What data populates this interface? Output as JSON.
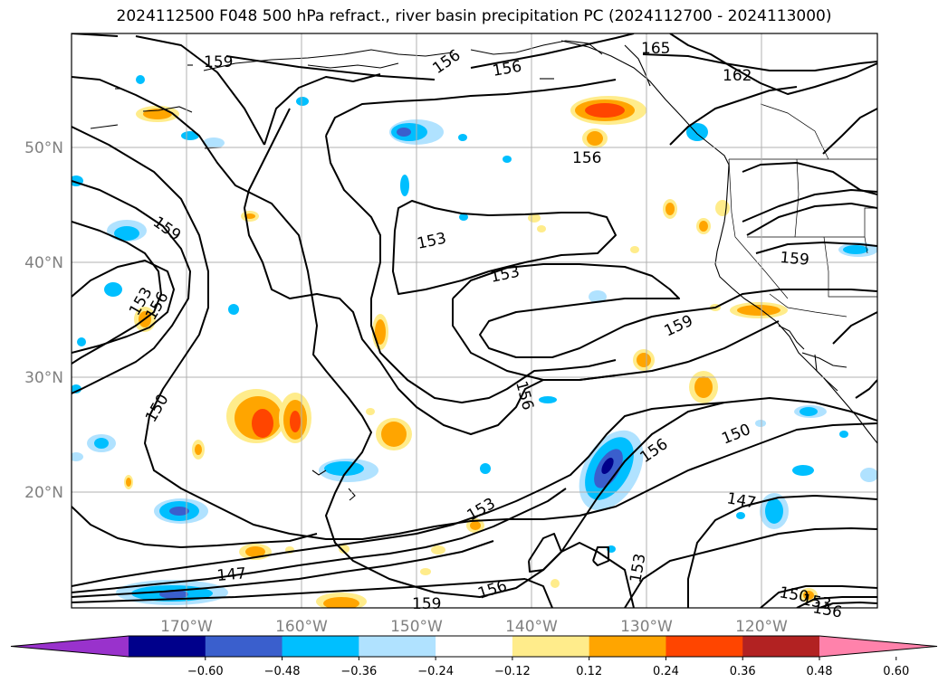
{
  "title": "2024112500 F048 500 hPa refract., river basin precipitation PC (2024112700 - 2024113000)",
  "map": {
    "lat_labels": [
      "50°N",
      "40°N",
      "30°N",
      "20°N"
    ],
    "lon_labels": [
      "170°W",
      "160°W",
      "150°W",
      "140°W",
      "130°W",
      "120°W"
    ],
    "contour_labels": [
      "159",
      "156",
      "156",
      "165",
      "162",
      "156",
      "159",
      "153",
      "153",
      "153",
      "156",
      "156",
      "150",
      "159",
      "159",
      "156",
      "150",
      "147",
      "153",
      "147",
      "153",
      "156",
      "159",
      "150",
      "153",
      "156"
    ]
  },
  "colorbar": {
    "ticks": [
      "−0.60",
      "−0.48",
      "−0.36",
      "−0.24",
      "−0.12",
      "0.12",
      "0.24",
      "0.36",
      "0.48",
      "0.60"
    ],
    "colors": [
      "#9932CC",
      "#00008B",
      "#3A5FCD",
      "#00BFFF",
      "#B0E2FF",
      "#FFFFFF",
      "#FFEC8B",
      "#FFA500",
      "#FF4500",
      "#B22222",
      "#FF82AB"
    ]
  }
}
